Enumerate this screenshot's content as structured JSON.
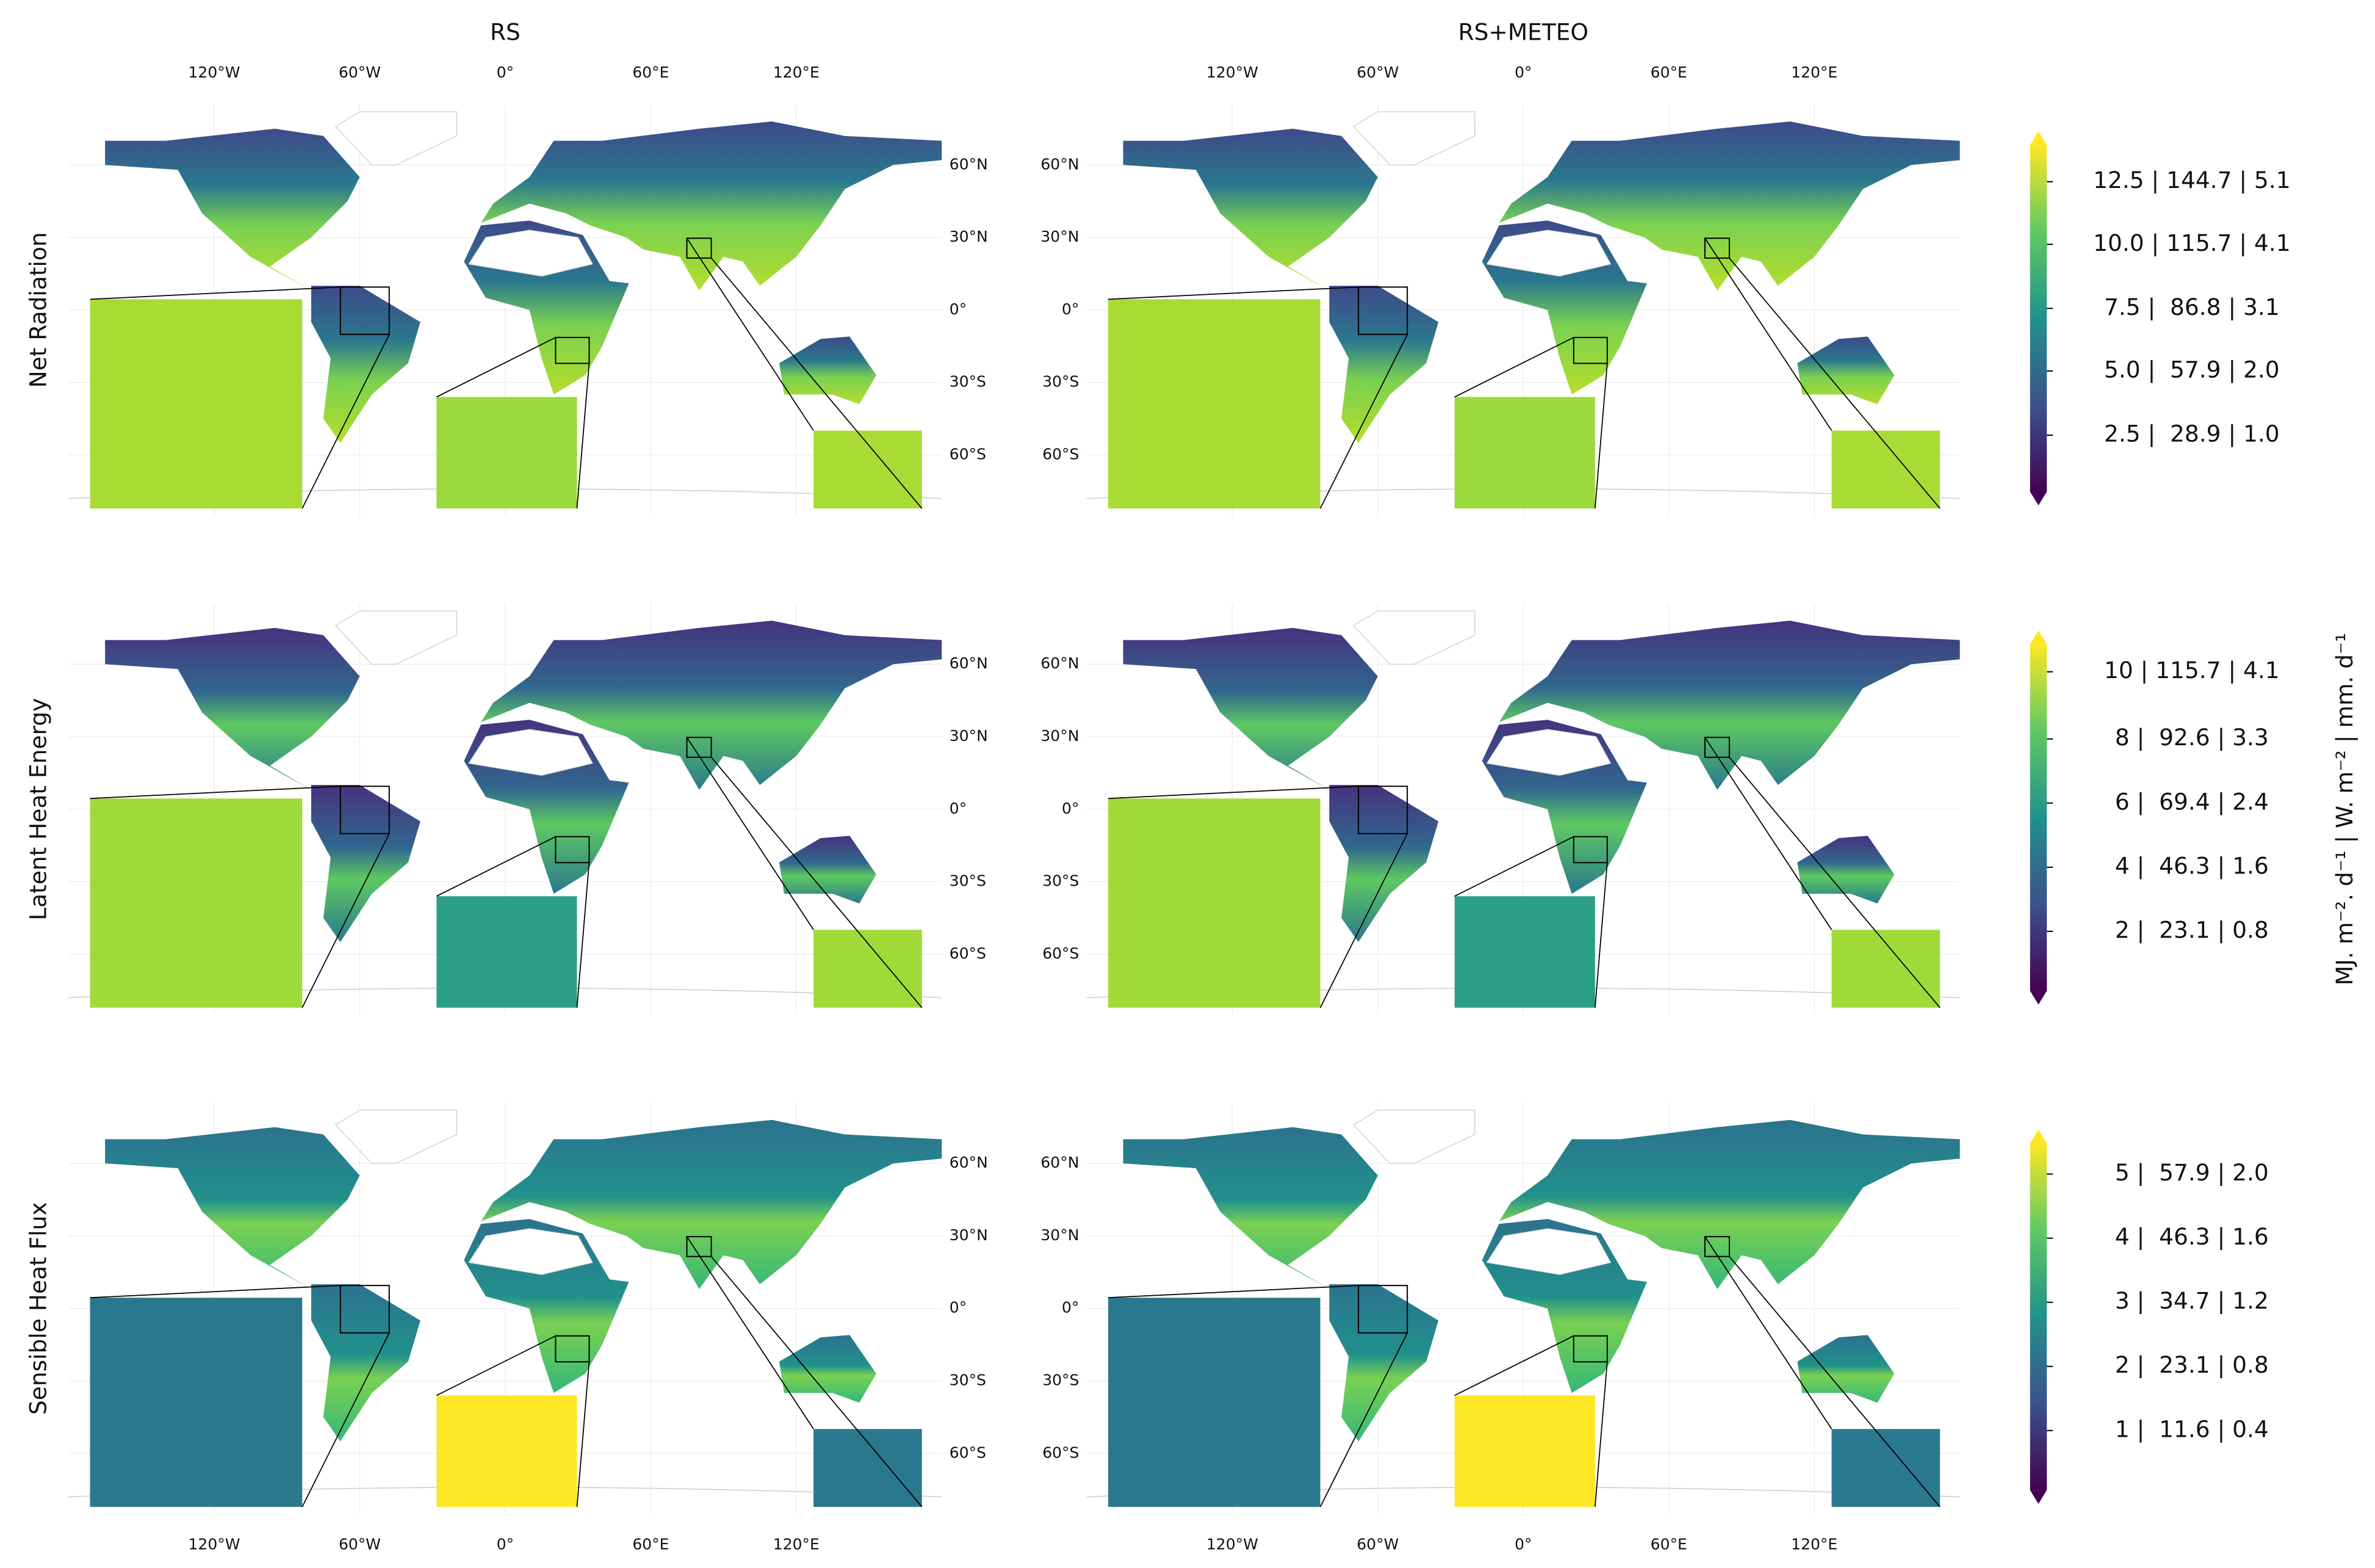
{
  "columns": [
    "RS",
    "RS+METEO"
  ],
  "rows": [
    "Net Radiation",
    "Latent Heat Energy",
    "Sensible Heat Flux"
  ],
  "longitude_ticks": [
    "120°W",
    "60°W",
    "0°",
    "60°E",
    "120°E"
  ],
  "latitude_ticks": [
    "60°N",
    "30°N",
    "0°",
    "30°S",
    "60°S"
  ],
  "colorbars": [
    {
      "ticks": [
        "12.5 | 144.7 | 5.1",
        "10.0 | 115.7 | 4.1",
        "7.5 |  86.8 | 3.1",
        "5.0 |  57.9 | 2.0",
        "2.5 |  28.9 | 1.0"
      ]
    },
    {
      "ticks": [
        "10 | 115.7 | 4.1",
        "8 |  92.6 | 3.3",
        "6 |  69.4 | 2.4",
        "4 |  46.3 | 1.6",
        "2 |  23.1 | 0.8"
      ]
    },
    {
      "ticks": [
        "5 |  57.9 | 2.0",
        "4 |  46.3 | 1.6",
        "3 |  34.7 | 1.2",
        "2 |  23.1 | 0.8",
        "1 |  11.6 | 0.4"
      ]
    }
  ],
  "colorbar_label": "MJ. m⁻². d⁻¹ | W. m⁻² | mm. d⁻¹"
}
